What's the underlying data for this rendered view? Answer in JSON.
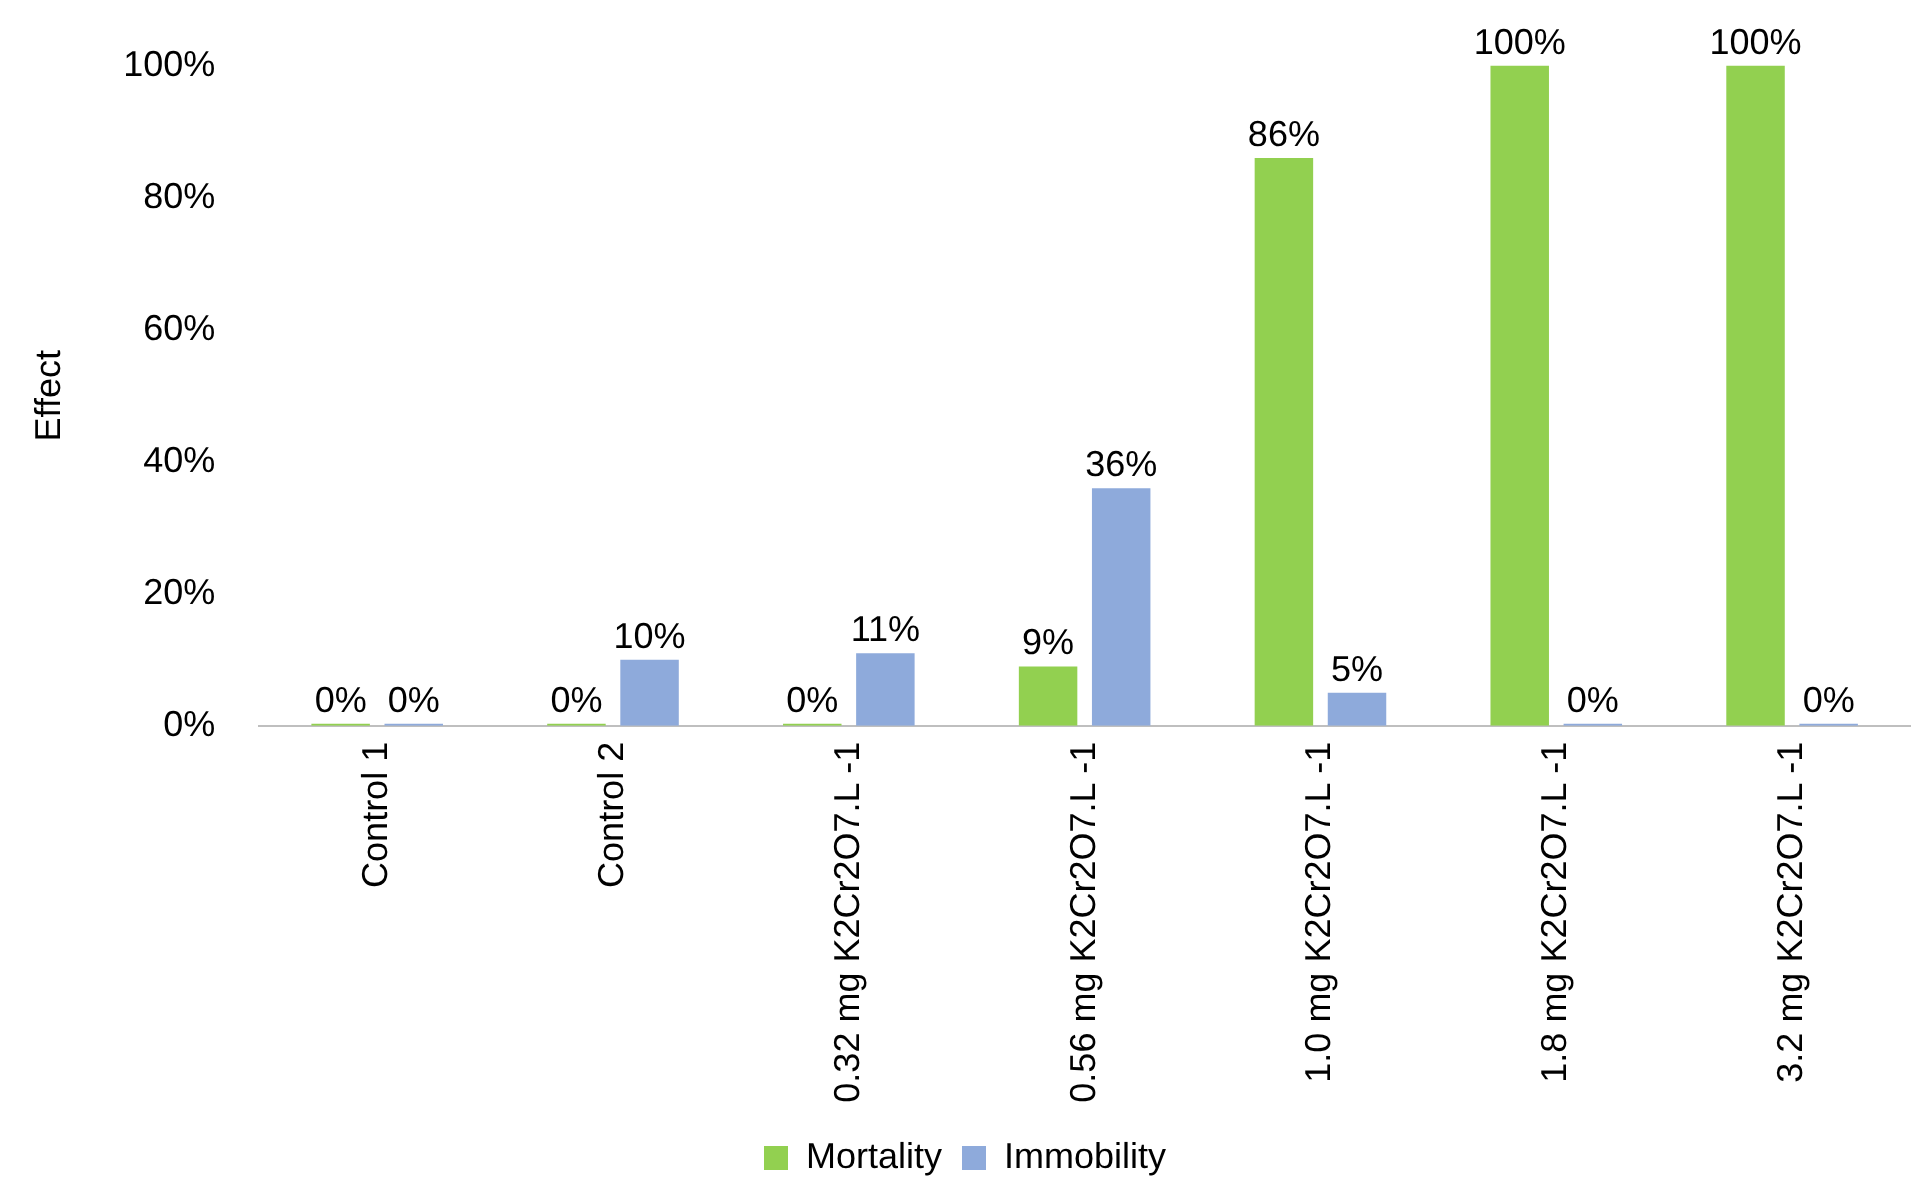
{
  "chart_data": {
    "type": "bar",
    "ylabel": "Effect",
    "categories": [
      "Control 1",
      "Control 2",
      "0.32 mg K2Cr2O7.L -1",
      "0.56 mg K2Cr2O7.L -1",
      "1.0 mg K2Cr2O7.L -1",
      "1.8 mg K2Cr2O7.L -1",
      "3.2 mg K2Cr2O7.L -1"
    ],
    "series": [
      {
        "name": "Mortality",
        "color": "#92d050",
        "values": [
          0,
          0,
          0,
          9,
          86,
          100,
          100
        ],
        "value_labels": [
          "0%",
          "0%",
          "0%",
          "9%",
          "86%",
          "100%",
          "100%"
        ]
      },
      {
        "name": "Immobility",
        "color": "#8eaadb",
        "values": [
          0,
          10,
          11,
          36,
          5,
          0,
          0
        ],
        "value_labels": [
          "0%",
          "10%",
          "11%",
          "36%",
          "5%",
          "0%",
          "0%"
        ]
      }
    ],
    "ylim": [
      0,
      100
    ],
    "yticks": [
      {
        "value": 0,
        "label": "0%"
      },
      {
        "value": 20,
        "label": "20%"
      },
      {
        "value": 40,
        "label": "40%"
      },
      {
        "value": 60,
        "label": "60%"
      },
      {
        "value": 80,
        "label": "80%"
      },
      {
        "value": 100,
        "label": "100%"
      }
    ],
    "grid": false,
    "legend": "bottom"
  }
}
